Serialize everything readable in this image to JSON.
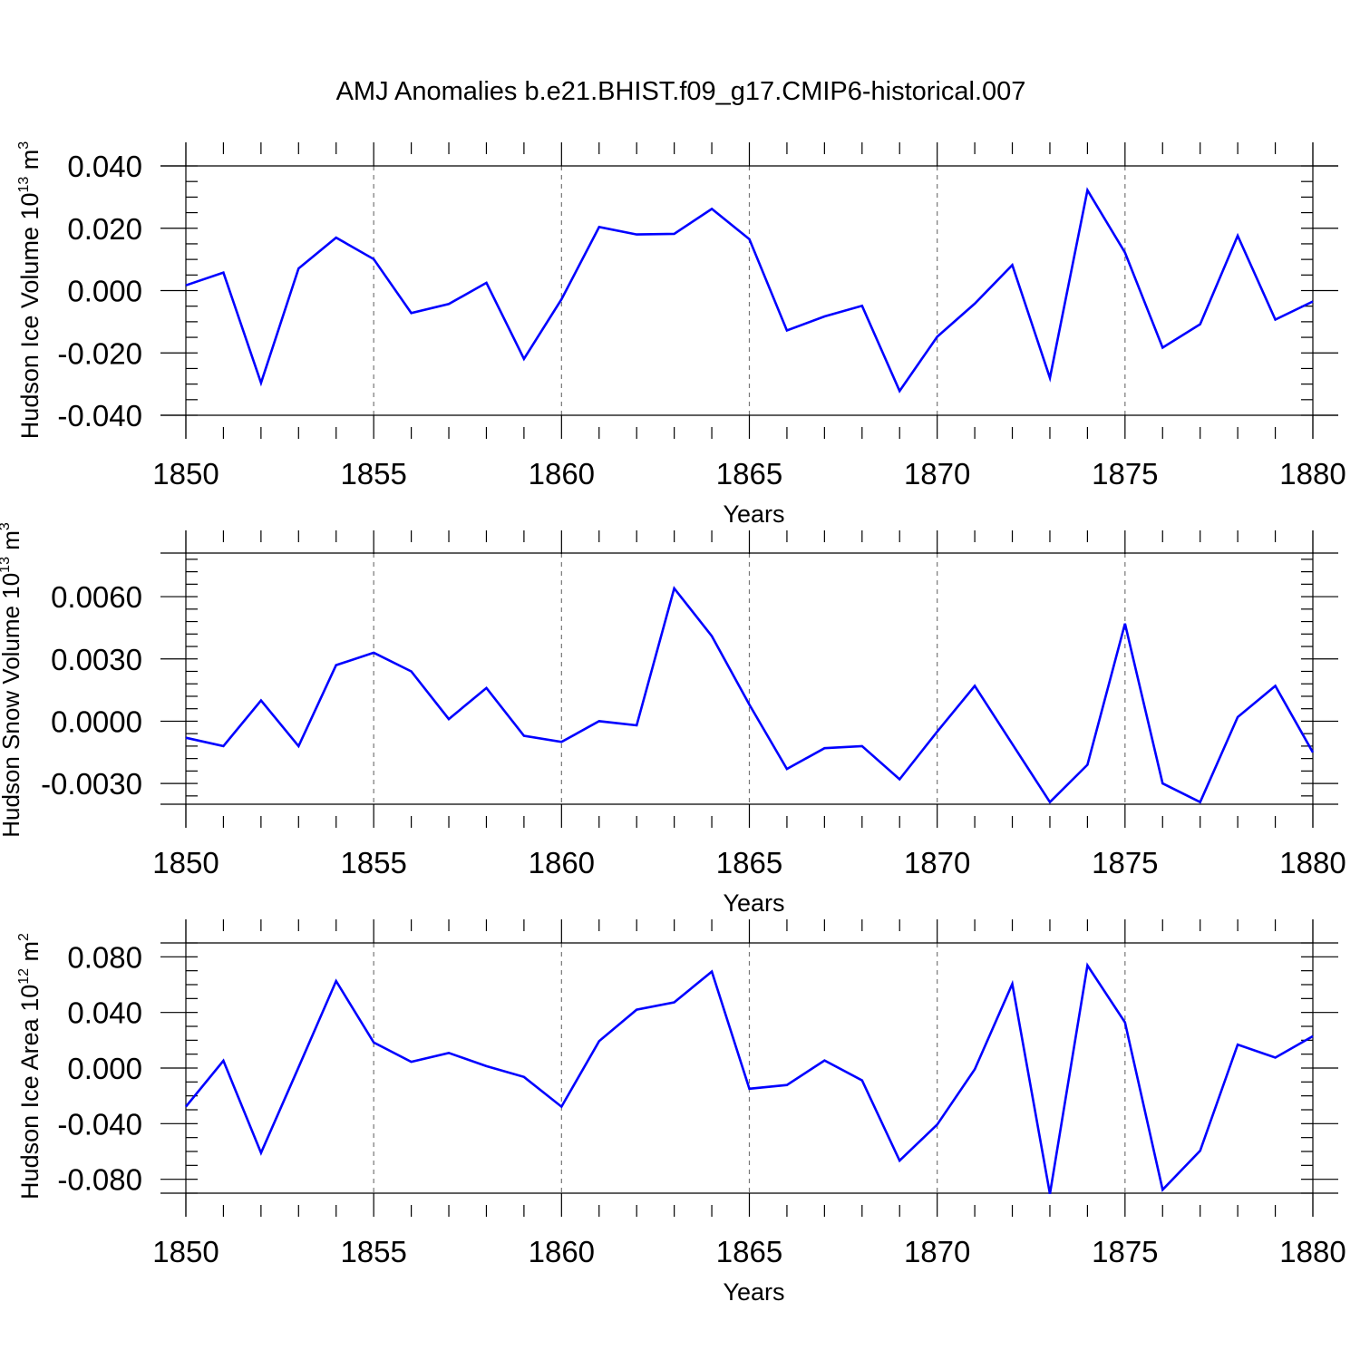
{
  "figure_title": "AMJ Anomalies b.e21.BHIST.f09_g17.CMIP6-historical.007",
  "colors": {
    "series": "#0000ff",
    "grid": "#777777",
    "axis": "#000000",
    "background": "#ffffff"
  },
  "chart_data": [
    {
      "type": "line",
      "title": "AMJ Anomalies b.e21.BHIST.f09_g17.CMIP6-historical.007",
      "xlabel": "Years",
      "ylabel": "Hudson Ice Volume 10",
      "ylabel_exp": "13",
      "ylabel_unit": " m",
      "ylabel_unit_exp": "3",
      "xlim": [
        1850,
        1880
      ],
      "ylim": [
        -0.04,
        0.04
      ],
      "x_ticks": [
        "1850",
        "1855",
        "1860",
        "1865",
        "1870",
        "1875",
        "1880"
      ],
      "y_ticks": [
        {
          "value": 0.04,
          "label": "0.040"
        },
        {
          "value": 0.02,
          "label": "0.020"
        },
        {
          "value": 0.0,
          "label": "0.000"
        },
        {
          "value": -0.02,
          "label": "-0.020"
        },
        {
          "value": -0.04,
          "label": "-0.040"
        }
      ],
      "y_minor_step": 0.005,
      "grid": "x-dashed",
      "series": [
        {
          "name": "Hudson Ice Volume",
          "x": [
            1850,
            1851,
            1852,
            1853,
            1854,
            1855,
            1856,
            1857,
            1858,
            1859,
            1860,
            1861,
            1862,
            1863,
            1864,
            1865,
            1866,
            1867,
            1868,
            1869,
            1870,
            1871,
            1872,
            1873,
            1874,
            1875,
            1876,
            1877,
            1878,
            1879,
            1880
          ],
          "values": [
            0.0017,
            0.0058,
            -0.0296,
            0.0071,
            0.017,
            0.0101,
            -0.0072,
            -0.0043,
            0.0025,
            -0.0219,
            -0.0028,
            0.0204,
            0.018,
            0.0182,
            0.0262,
            0.0165,
            -0.0128,
            -0.0083,
            -0.0049,
            -0.0322,
            -0.0148,
            -0.0042,
            0.0082,
            -0.028,
            0.0322,
            0.0122,
            -0.0183,
            -0.0108,
            0.0176,
            -0.0093,
            -0.0035
          ]
        }
      ]
    },
    {
      "type": "line",
      "title": "",
      "xlabel": "Years",
      "ylabel": "Hudson Snow Volume 10",
      "ylabel_exp": "13",
      "ylabel_unit": " m",
      "ylabel_unit_exp": "3",
      "xlim": [
        1850,
        1880
      ],
      "ylim": [
        -0.004,
        0.0081
      ],
      "x_ticks": [
        "1850",
        "1855",
        "1860",
        "1865",
        "1870",
        "1875",
        "1880"
      ],
      "y_ticks": [
        {
          "value": 0.006,
          "label": "0.0060"
        },
        {
          "value": 0.003,
          "label": "0.0030"
        },
        {
          "value": 0.0,
          "label": "0.0000"
        },
        {
          "value": -0.003,
          "label": "-0.0030"
        }
      ],
      "y_minor_step": 0.0006,
      "grid": "x-dashed",
      "series": [
        {
          "name": "Hudson Snow Volume",
          "x": [
            1850,
            1851,
            1852,
            1853,
            1854,
            1855,
            1856,
            1857,
            1858,
            1859,
            1860,
            1861,
            1862,
            1863,
            1864,
            1865,
            1866,
            1867,
            1868,
            1869,
            1870,
            1871,
            1872,
            1873,
            1874,
            1875,
            1876,
            1877,
            1878,
            1879,
            1880
          ],
          "values": [
            -0.0008,
            -0.0012,
            0.001,
            -0.0012,
            0.0027,
            0.0033,
            0.0024,
            0.0001,
            0.0016,
            -0.0007,
            -0.001,
            0.0,
            -0.0002,
            0.0064,
            0.0041,
            0.0008,
            -0.0023,
            -0.0013,
            -0.0012,
            -0.0028,
            -0.0005,
            0.0017,
            -0.0011,
            -0.0039,
            -0.0021,
            0.0047,
            -0.003,
            -0.0039,
            0.0002,
            0.0017,
            -0.0015
          ]
        }
      ]
    },
    {
      "type": "line",
      "title": "",
      "xlabel": "Years",
      "ylabel": "Hudson Ice Area 10",
      "ylabel_exp": "12",
      "ylabel_unit": " m",
      "ylabel_unit_exp": "2",
      "xlim": [
        1850,
        1880
      ],
      "ylim": [
        -0.09,
        0.09
      ],
      "x_ticks": [
        "1850",
        "1855",
        "1860",
        "1865",
        "1870",
        "1875",
        "1880"
      ],
      "y_ticks": [
        {
          "value": 0.08,
          "label": "0.080"
        },
        {
          "value": 0.04,
          "label": "0.040"
        },
        {
          "value": 0.0,
          "label": "0.000"
        },
        {
          "value": -0.04,
          "label": "-0.040"
        },
        {
          "value": -0.08,
          "label": "-0.080"
        }
      ],
      "y_minor_step": 0.01,
      "grid": "x-dashed",
      "series": [
        {
          "name": "Hudson Ice Area",
          "x": [
            1850,
            1851,
            1852,
            1853,
            1854,
            1855,
            1856,
            1857,
            1858,
            1859,
            1860,
            1861,
            1862,
            1863,
            1864,
            1865,
            1866,
            1867,
            1868,
            1869,
            1870,
            1871,
            1872,
            1873,
            1874,
            1875,
            1876,
            1877,
            1878,
            1879,
            1880
          ],
          "values": [
            -0.0278,
            0.0053,
            -0.061,
            0.0005,
            0.0626,
            0.0184,
            0.0045,
            0.0109,
            0.0014,
            -0.0064,
            -0.0278,
            0.0194,
            0.042,
            0.0473,
            0.0694,
            -0.0149,
            -0.0122,
            0.0055,
            -0.0089,
            -0.0666,
            -0.0406,
            -0.0009,
            0.0605,
            -0.0905,
            0.0738,
            0.0328,
            -0.0875,
            -0.0595,
            0.0169,
            0.0075,
            0.0229
          ]
        }
      ]
    }
  ]
}
